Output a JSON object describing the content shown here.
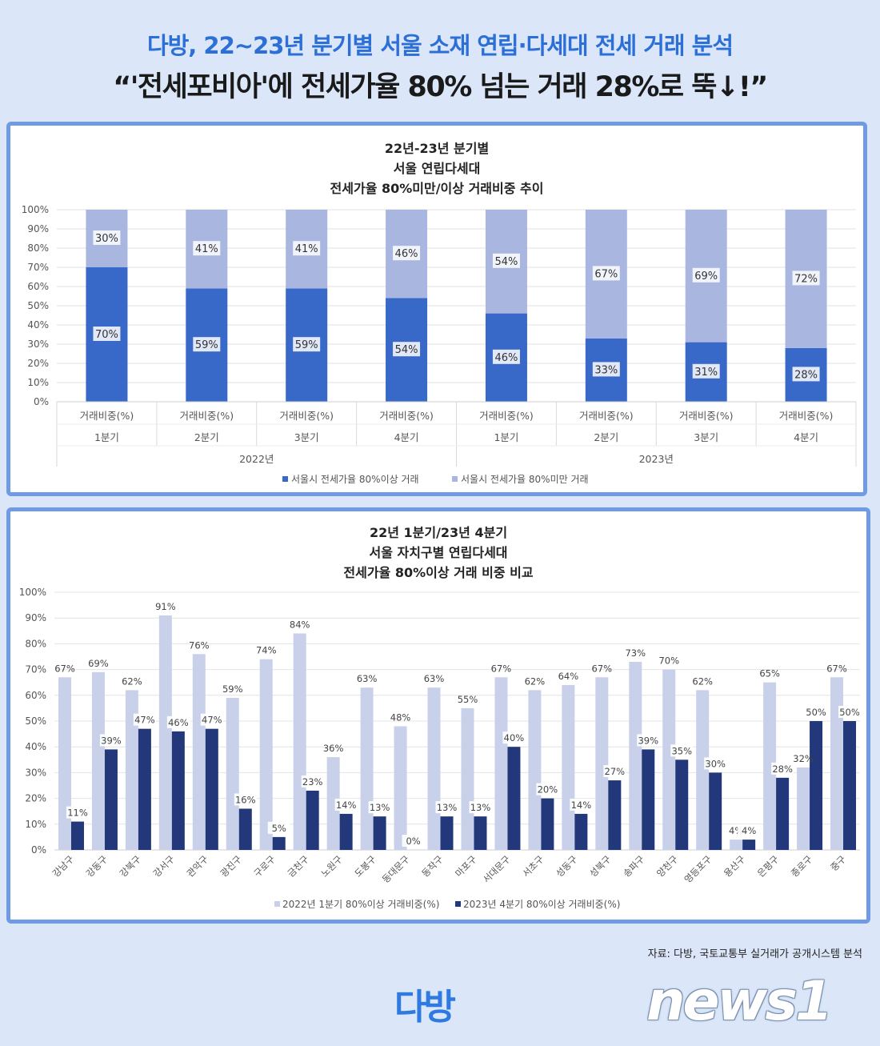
{
  "header": {
    "line1": "다방, 22~23년 분기별 서울 소재 연립·다세대 전세 거래 분석",
    "line2": "“'전세포비아'에 전세가율 80% 넘는 거래 28%로 뚝↓!”"
  },
  "chart1": {
    "title_lines": [
      "22년-23년 분기별",
      "서울 연립다세대",
      "전세가율 80%미만/이상 거래비중 추이"
    ],
    "chart_data": {
      "type": "bar",
      "stacked": true,
      "y_ticks": [
        "0%",
        "10%",
        "20%",
        "30%",
        "40%",
        "50%",
        "60%",
        "70%",
        "80%",
        "90%",
        "100%"
      ],
      "ylim": [
        0,
        100
      ],
      "category_label": "거래비중(%)",
      "quarters": [
        "1분기",
        "2분기",
        "3분기",
        "4분기",
        "1분기",
        "2분기",
        "3분기",
        "4분기"
      ],
      "years": [
        "2022년",
        "2023년"
      ],
      "series": [
        {
          "name": "서울시 전세가율 80%이상 거래",
          "color": "#3869c8",
          "values": [
            70,
            59,
            59,
            54,
            46,
            33,
            31,
            28
          ],
          "labels": [
            "70%",
            "59%",
            "59%",
            "54%",
            "46%",
            "33%",
            "31%",
            "28%"
          ]
        },
        {
          "name": "서울시 전세가율 80%미만 거래",
          "color": "#a9b6e0",
          "values": [
            30,
            41,
            41,
            46,
            54,
            67,
            69,
            72
          ],
          "labels": [
            "30%",
            "41%",
            "41%",
            "46%",
            "54%",
            "67%",
            "69%",
            "72%"
          ]
        }
      ],
      "legend_position": "bottom"
    }
  },
  "chart2": {
    "title_lines": [
      "22년 1분기/23년 4분기",
      "서울 자치구별 연립다세대",
      "전세가율 80%이상 거래 비중 비교"
    ],
    "chart_data": {
      "type": "bar",
      "y_ticks": [
        "0%",
        "10%",
        "20%",
        "30%",
        "40%",
        "50%",
        "60%",
        "70%",
        "80%",
        "90%",
        "100%"
      ],
      "ylim": [
        0,
        100
      ],
      "categories": [
        "강남구",
        "강동구",
        "강북구",
        "강서구",
        "관악구",
        "광진구",
        "구로구",
        "금천구",
        "노원구",
        "도봉구",
        "동대문구",
        "동작구",
        "마포구",
        "서대문구",
        "서초구",
        "성동구",
        "성북구",
        "송파구",
        "양천구",
        "영등포구",
        "용산구",
        "은평구",
        "종로구",
        "중구"
      ],
      "series": [
        {
          "name": "2022년 1분기 80%이상 거래비중(%)",
          "color": "#c9d1ea",
          "values": [
            67,
            69,
            62,
            91,
            76,
            59,
            74,
            84,
            36,
            63,
            48,
            63,
            55,
            67,
            62,
            64,
            67,
            73,
            70,
            62,
            4,
            65,
            32,
            67
          ],
          "labels": [
            "67%",
            "69%",
            "62%",
            "91%",
            "76%",
            "59%",
            "74%",
            "84%",
            "36%",
            "63%",
            "48%",
            "63%",
            "55%",
            "67%",
            "62%",
            "64%",
            "67%",
            "73%",
            "70%",
            "62%",
            "4%",
            "65%",
            "32%",
            "67%"
          ]
        },
        {
          "name": "2023년 4분기 80%이상 거래비중(%)",
          "color": "#22387a",
          "values": [
            11,
            39,
            47,
            46,
            47,
            16,
            5,
            23,
            14,
            13,
            0,
            13,
            13,
            40,
            20,
            14,
            27,
            39,
            35,
            30,
            4,
            28,
            50,
            50
          ],
          "labels": [
            "11%",
            "39%",
            "47%",
            "46%",
            "47%",
            "16%",
            "5%",
            "23%",
            "14%",
            "13%",
            "0%",
            "13%",
            "13%",
            "40%",
            "20%",
            "14%",
            "27%",
            "39%",
            "35%",
            "30%",
            "4%",
            "28%",
            "50%",
            "50%"
          ]
        }
      ],
      "legend_position": "bottom"
    }
  },
  "footer": {
    "source": "자료: 다방, 국토교통부 실거래가 공개시스템 분석",
    "logo": "다방",
    "watermark": "news1"
  }
}
